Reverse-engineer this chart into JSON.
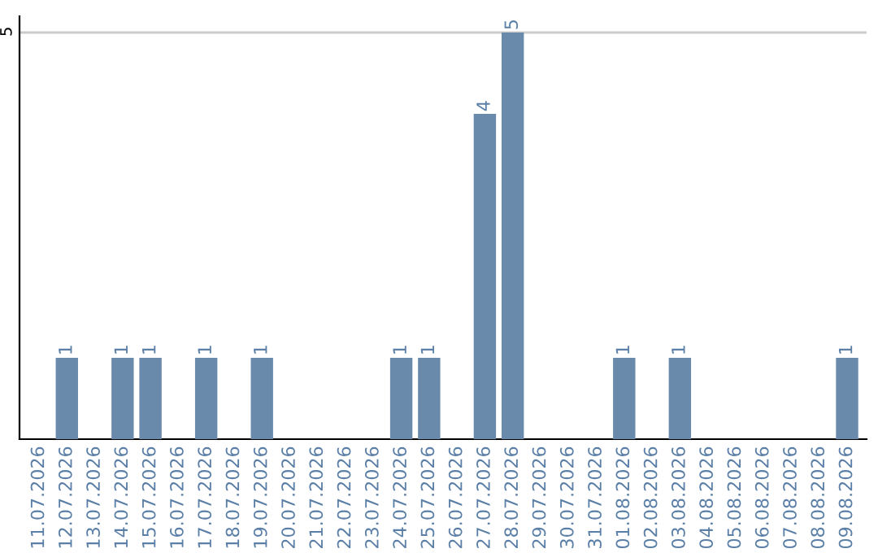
{
  "chart_data": {
    "type": "bar",
    "categories": [
      "11.07.2026",
      "12.07.2026",
      "13.07.2026",
      "14.07.2026",
      "15.07.2026",
      "16.07.2026",
      "17.07.2026",
      "18.07.2026",
      "19.07.2026",
      "20.07.2026",
      "21.07.2026",
      "22.07.2026",
      "23.07.2026",
      "24.07.2026",
      "25.07.2026",
      "26.07.2026",
      "27.07.2026",
      "28.07.2026",
      "29.07.2026",
      "30.07.2026",
      "31.07.2026",
      "01.08.2026",
      "02.08.2026",
      "03.08.2026",
      "04.08.2026",
      "05.08.2026",
      "06.08.2026",
      "07.08.2026",
      "08.08.2026",
      "09.08.2026"
    ],
    "values": [
      0,
      1,
      0,
      1,
      1,
      0,
      1,
      0,
      1,
      0,
      0,
      0,
      0,
      1,
      1,
      0,
      4,
      5,
      0,
      0,
      0,
      1,
      0,
      1,
      0,
      0,
      0,
      0,
      0,
      1
    ],
    "value_labels": [
      null,
      "1",
      null,
      "1",
      "1",
      null,
      "1",
      null,
      "1",
      null,
      null,
      null,
      null,
      "1",
      "1",
      null,
      "4",
      "5",
      null,
      null,
      null,
      "1",
      null,
      "1",
      null,
      null,
      null,
      null,
      null,
      "1"
    ],
    "color": "#6a8aab",
    "ylim": [
      0,
      5.2
    ],
    "yticks": [
      5
    ],
    "grid": "y"
  }
}
